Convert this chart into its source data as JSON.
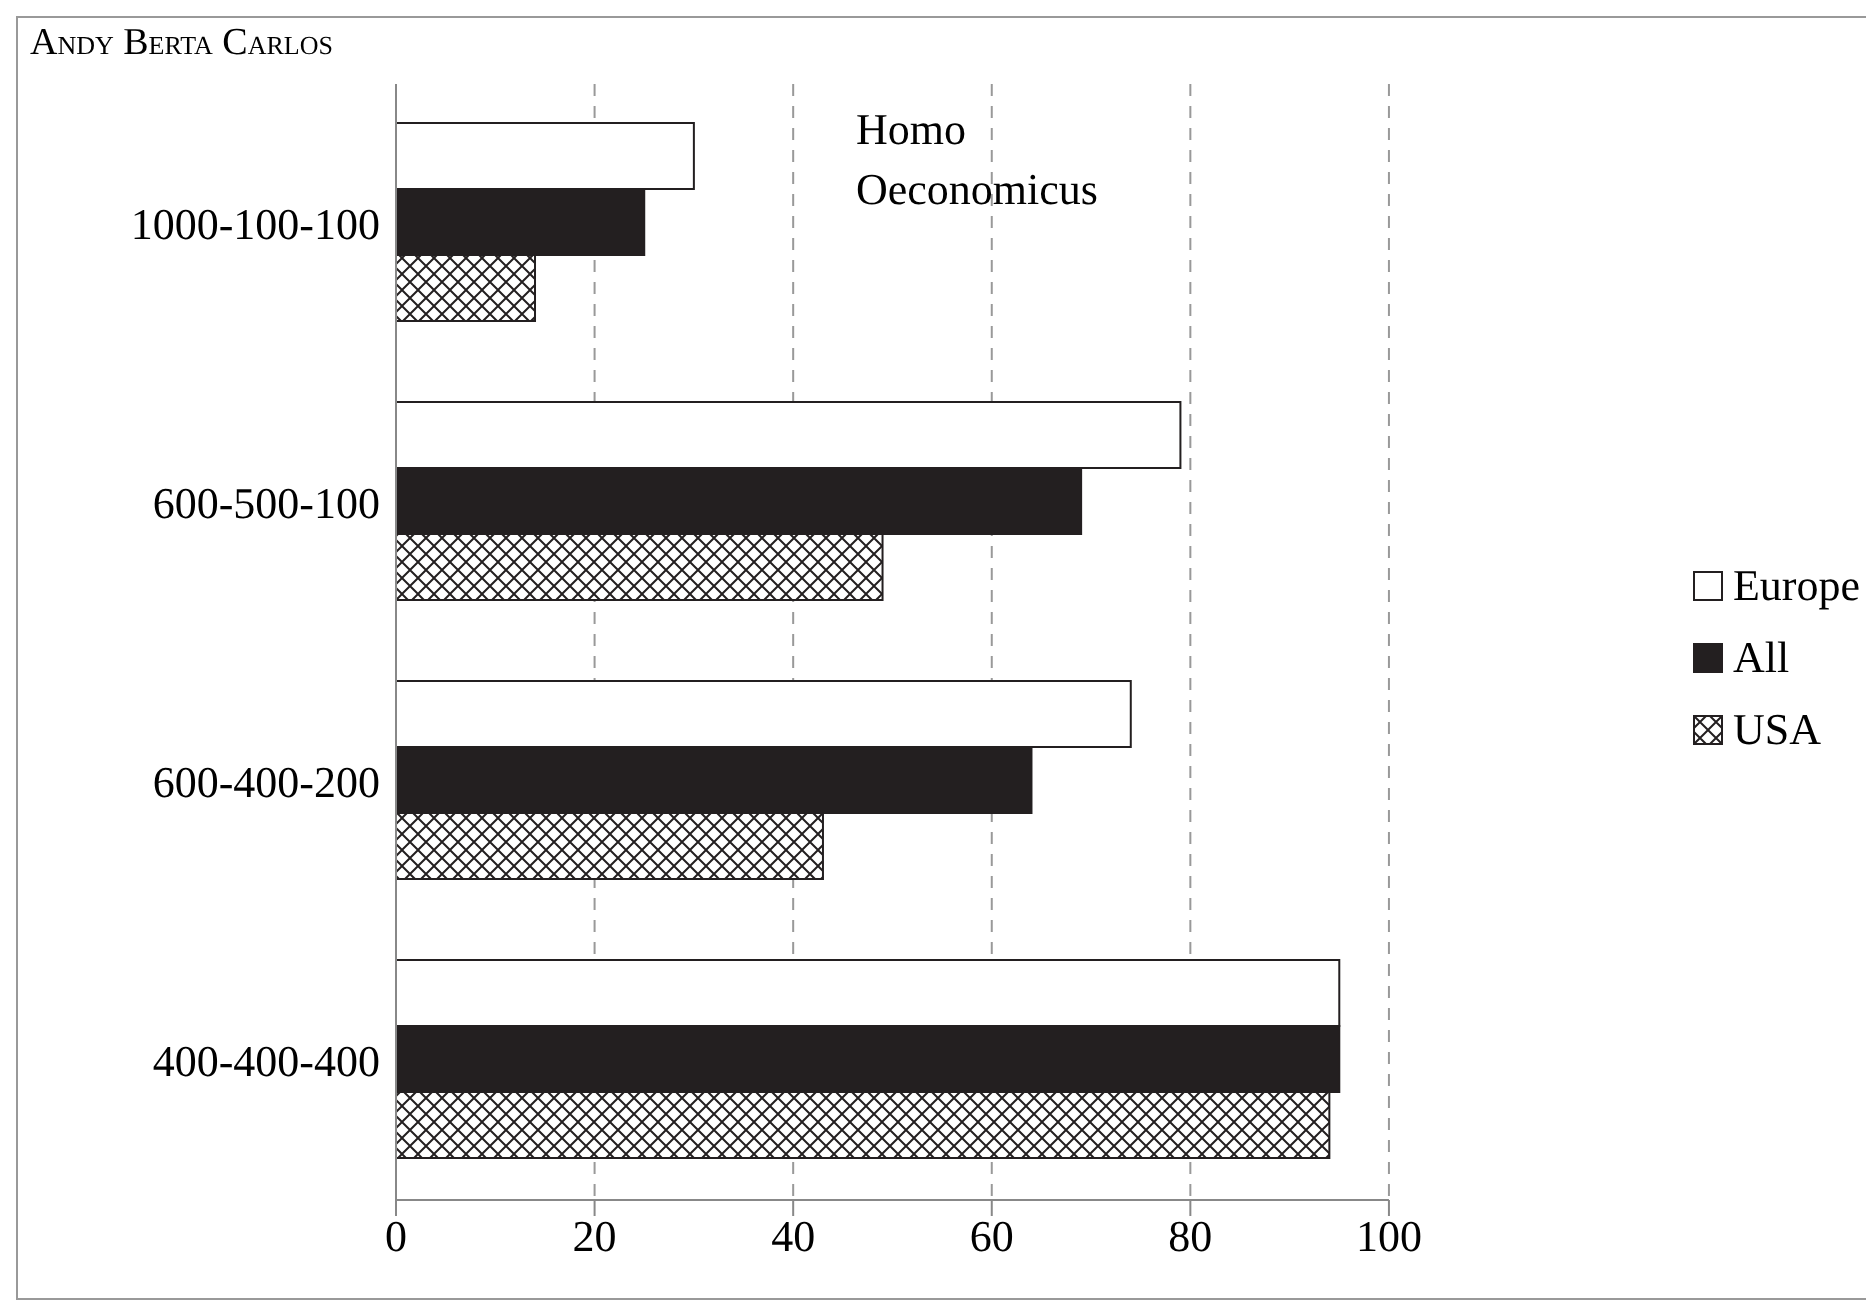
{
  "chart_data": {
    "type": "bar",
    "orientation": "horizontal",
    "title": "Andy Berta Carlos",
    "categories": [
      "1000-100-100",
      "600-500-100",
      "600-400-200",
      "400-400-400"
    ],
    "series": [
      {
        "name": "Europe",
        "color": "#ffffff",
        "values": [
          30,
          79,
          74,
          95
        ]
      },
      {
        "name": "All",
        "color": "#231f20",
        "values": [
          25,
          69,
          64,
          95
        ]
      },
      {
        "name": "USA",
        "color": "#231f20",
        "values": [
          14,
          49,
          43,
          94
        ]
      }
    ],
    "xlim": [
      0,
      100
    ],
    "xticks": [
      0,
      20,
      40,
      60,
      80,
      100
    ],
    "grid": "x",
    "legend": "right",
    "annotations": [
      "Homo Oeconomicus"
    ]
  }
}
